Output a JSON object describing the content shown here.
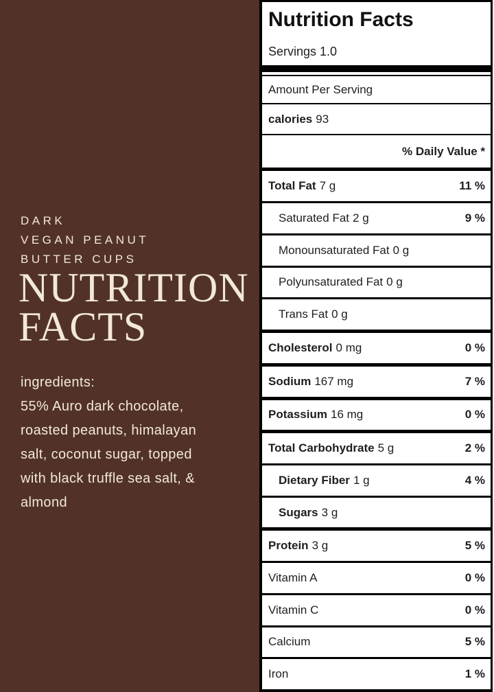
{
  "colors": {
    "background_brown": "#523228",
    "cream_text": "#f2e8da",
    "label_background": "#ffffff",
    "label_text": "#1e1e1e",
    "border_black": "#000000"
  },
  "left_panel": {
    "subtitle_lines": [
      "DARK",
      "VEGAN PEANUT",
      "BUTTER CUPS"
    ],
    "title_lines": [
      "NUTRITION",
      "FACTS"
    ],
    "ingredients_lines": [
      "ingredients:",
      "55% Auro dark chocolate,",
      "roasted peanuts, himalayan",
      "salt, coconut sugar, topped",
      "with black truffle sea salt, &",
      "almond"
    ]
  },
  "label": {
    "title": "Nutrition Facts",
    "servings": "Servings 1.0",
    "amount_per_serving": "Amount Per Serving",
    "calories_label": "calories",
    "calories_value": "93",
    "daily_value_header": "% Daily Value *",
    "rows": [
      {
        "name": "Total Fat",
        "amount": "7 g",
        "dv": "11 %",
        "bold": true,
        "indent": false,
        "thick": true
      },
      {
        "name": "Saturated Fat",
        "amount": "2 g",
        "dv": "9 %",
        "bold": false,
        "indent": true,
        "thick": false
      },
      {
        "name": "Monounsaturated Fat",
        "amount": "0 g",
        "dv": "",
        "bold": false,
        "indent": true,
        "thick": false
      },
      {
        "name": "Polyunsaturated Fat",
        "amount": "0 g",
        "dv": "",
        "bold": false,
        "indent": true,
        "thick": false
      },
      {
        "name": "Trans Fat",
        "amount": "0 g",
        "dv": "",
        "bold": false,
        "indent": true,
        "thick": false
      },
      {
        "name": "Cholesterol",
        "amount": "0 mg",
        "dv": "0 %",
        "bold": true,
        "indent": false,
        "thick": true
      },
      {
        "name": "Sodium",
        "amount": "167 mg",
        "dv": "7 %",
        "bold": true,
        "indent": false,
        "thick": true
      },
      {
        "name": "Potassium",
        "amount": "16 mg",
        "dv": "0 %",
        "bold": true,
        "indent": false,
        "thick": true
      },
      {
        "name": "Total Carbohydrate",
        "amount": "5 g",
        "dv": "2 %",
        "bold": true,
        "indent": false,
        "thick": true
      },
      {
        "name": "Dietary Fiber",
        "amount": "1 g",
        "dv": "4 %",
        "bold": true,
        "indent": true,
        "thick": false
      },
      {
        "name": "Sugars",
        "amount": "3 g",
        "dv": "",
        "bold": true,
        "indent": true,
        "thick": false
      },
      {
        "name": "Protein",
        "amount": "3 g",
        "dv": "5 %",
        "bold": true,
        "indent": false,
        "thick": true
      },
      {
        "name": "Vitamin A",
        "amount": "",
        "dv": "0 %",
        "bold": false,
        "indent": false,
        "thick": false
      },
      {
        "name": "Vitamin C",
        "amount": "",
        "dv": "0 %",
        "bold": false,
        "indent": false,
        "thick": false
      },
      {
        "name": "Calcium",
        "amount": "",
        "dv": "5 %",
        "bold": false,
        "indent": false,
        "thick": false
      },
      {
        "name": "Iron",
        "amount": "",
        "dv": "1 %",
        "bold": false,
        "indent": false,
        "thick": false
      }
    ]
  }
}
